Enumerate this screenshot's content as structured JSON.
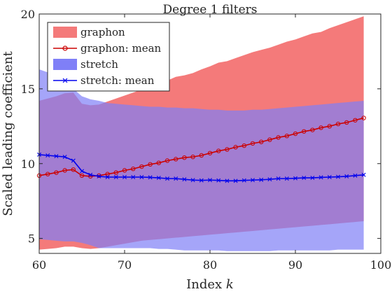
{
  "chart_data": {
    "type": "area",
    "title": "Degree 1 filters",
    "xlabel": "Index k",
    "xlabel_prefix": "Index ",
    "xlabel_var": "k",
    "ylabel": "Scaled leading coefficient",
    "xlim": [
      60,
      100
    ],
    "ylim": [
      4,
      20
    ],
    "xticks": [
      60,
      70,
      80,
      90,
      100
    ],
    "yticks": [
      5,
      10,
      15,
      20
    ],
    "legend_position": "top-left",
    "x": [
      60,
      61,
      62,
      63,
      64,
      65,
      66,
      67,
      68,
      69,
      70,
      71,
      72,
      73,
      74,
      75,
      76,
      77,
      78,
      79,
      80,
      81,
      82,
      83,
      84,
      85,
      86,
      87,
      88,
      89,
      90,
      91,
      92,
      93,
      94,
      95,
      96,
      97,
      98
    ],
    "bands": [
      {
        "name": "graphon",
        "color": "#f47a7a",
        "upper": [
          14.2,
          14.35,
          14.5,
          14.7,
          14.75,
          14.0,
          13.9,
          13.95,
          14.15,
          14.35,
          14.55,
          14.75,
          14.95,
          15.15,
          15.35,
          15.55,
          15.8,
          15.9,
          16.05,
          16.3,
          16.5,
          16.75,
          16.85,
          17.05,
          17.25,
          17.45,
          17.6,
          17.75,
          17.95,
          18.15,
          18.3,
          18.5,
          18.7,
          18.8,
          19.05,
          19.25,
          19.45,
          19.65,
          19.85
        ],
        "lower": [
          4.25,
          4.3,
          4.35,
          4.45,
          4.45,
          4.35,
          4.3,
          4.35,
          4.45,
          4.55,
          4.65,
          4.75,
          4.85,
          4.9,
          4.95,
          5.0,
          5.05,
          5.1,
          5.15,
          5.2,
          5.25,
          5.3,
          5.35,
          5.4,
          5.45,
          5.5,
          5.55,
          5.6,
          5.65,
          5.7,
          5.75,
          5.8,
          5.85,
          5.9,
          5.95,
          6.0,
          6.05,
          6.1,
          6.15
        ]
      },
      {
        "name": "stretch",
        "color": "#7f7ff7",
        "upper": [
          16.3,
          16.1,
          15.9,
          15.5,
          15.0,
          14.5,
          14.3,
          14.2,
          14.05,
          14.0,
          13.95,
          13.9,
          13.85,
          13.8,
          13.8,
          13.75,
          13.75,
          13.7,
          13.7,
          13.65,
          13.6,
          13.6,
          13.55,
          13.55,
          13.55,
          13.6,
          13.6,
          13.65,
          13.7,
          13.75,
          13.8,
          13.85,
          13.9,
          13.95,
          14.0,
          14.05,
          14.1,
          14.15,
          14.2
        ],
        "lower": [
          4.95,
          4.9,
          4.85,
          4.8,
          4.8,
          4.7,
          4.55,
          4.35,
          4.35,
          4.35,
          4.35,
          4.35,
          4.35,
          4.35,
          4.3,
          4.3,
          4.25,
          4.2,
          4.2,
          4.2,
          4.2,
          4.2,
          4.15,
          4.15,
          4.15,
          4.15,
          4.15,
          4.15,
          4.2,
          4.2,
          4.2,
          4.2,
          4.2,
          4.2,
          4.2,
          4.25,
          4.25,
          4.25,
          4.25
        ]
      }
    ],
    "series": [
      {
        "name": "graphon: mean",
        "color": "#cc0000",
        "marker": "circle",
        "values": [
          9.2,
          9.3,
          9.4,
          9.55,
          9.6,
          9.2,
          9.15,
          9.2,
          9.3,
          9.4,
          9.55,
          9.65,
          9.8,
          9.95,
          10.05,
          10.2,
          10.3,
          10.4,
          10.45,
          10.55,
          10.7,
          10.85,
          10.95,
          11.1,
          11.2,
          11.35,
          11.45,
          11.6,
          11.75,
          11.85,
          12.0,
          12.15,
          12.25,
          12.4,
          12.5,
          12.65,
          12.75,
          12.9,
          13.05
        ]
      },
      {
        "name": "stretch: mean",
        "color": "#0000ee",
        "marker": "x",
        "values": [
          10.6,
          10.55,
          10.5,
          10.45,
          10.2,
          9.5,
          9.25,
          9.15,
          9.1,
          9.1,
          9.1,
          9.1,
          9.1,
          9.08,
          9.05,
          9.0,
          9.0,
          8.95,
          8.9,
          8.88,
          8.9,
          8.88,
          8.85,
          8.85,
          8.88,
          8.9,
          8.92,
          8.95,
          9.0,
          9.0,
          9.02,
          9.05,
          9.05,
          9.08,
          9.1,
          9.12,
          9.15,
          9.2,
          9.25
        ]
      }
    ]
  }
}
